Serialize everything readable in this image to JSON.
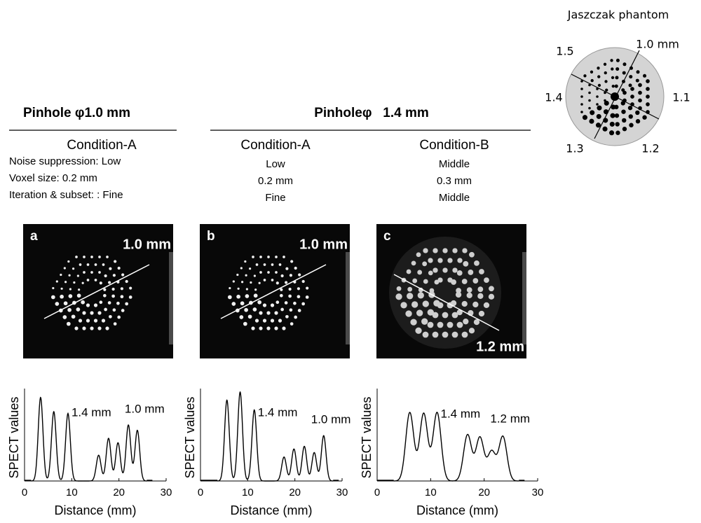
{
  "phantom": {
    "title": "Jaszczak phantom",
    "labels": [
      "1.5",
      "1.0 mm",
      "1.4",
      "1.1",
      "1.3",
      "1.2"
    ]
  },
  "headers": {
    "pinhole_small": "Pinhole φ1.0 mm",
    "pinhole_large": "Pinholeφ   1.4 mm"
  },
  "columns": [
    {
      "condition": "Condition-A",
      "params": [
        "Noise suppression:   Low",
        "Voxel size:          0.2 mm",
        "Iteration   &   subset: : Fine"
      ],
      "panel": "a",
      "line_label": "1.0 mm",
      "plot": {
        "type": "line",
        "xlabel": "Distance (mm)",
        "ylabel": "SPECT values",
        "xlim": [
          0,
          30
        ],
        "xticks": [
          0,
          10,
          20,
          30
        ],
        "annotations": [
          "1.4 mm",
          "1.0 mm"
        ],
        "peaks": {
          "x": [
            3.4,
            6.2,
            9.2,
            15.7,
            17.8,
            19.8,
            22,
            23.9
          ],
          "height": [
            0.94,
            0.78,
            0.76,
            0.29,
            0.48,
            0.43,
            0.63,
            0.57
          ]
        }
      }
    },
    {
      "condition": "Condition-A",
      "params": [
        "Low",
        "0.2 mm",
        "Fine"
      ],
      "panel": "b",
      "line_label": "1.0 mm",
      "plot": {
        "type": "line",
        "xlabel": "Distance (mm)",
        "ylabel": "SPECT values",
        "xlim": [
          0,
          30
        ],
        "xticks": [
          0,
          10,
          20,
          30
        ],
        "annotations": [
          "1.4 mm",
          "1.0 mm"
        ],
        "peaks": {
          "x": [
            5.6,
            8.4,
            11.4,
            17.7,
            19.8,
            22,
            24.1,
            26.1
          ],
          "height": [
            0.91,
            1.0,
            0.8,
            0.27,
            0.36,
            0.39,
            0.32,
            0.51
          ]
        }
      }
    },
    {
      "condition": "Condition-B",
      "params": [
        "Middle",
        "0.3 mm",
        "Middle"
      ],
      "panel": "c",
      "line_label": "1.2 mm",
      "plot": {
        "type": "line",
        "xlabel": "Distance (mm)",
        "ylabel": "SPECT values",
        "xlim": [
          0,
          30
        ],
        "xticks": [
          0,
          10,
          20,
          30
        ],
        "annotations": [
          "1.4 mm",
          "1.2 mm"
        ],
        "peaks": {
          "x": [
            6.1,
            8.7,
            11.2,
            16.9,
            19.2,
            21.4,
            23.5
          ],
          "height": [
            0.77,
            0.76,
            0.77,
            0.52,
            0.49,
            0.33,
            0.5
          ]
        }
      }
    }
  ]
}
